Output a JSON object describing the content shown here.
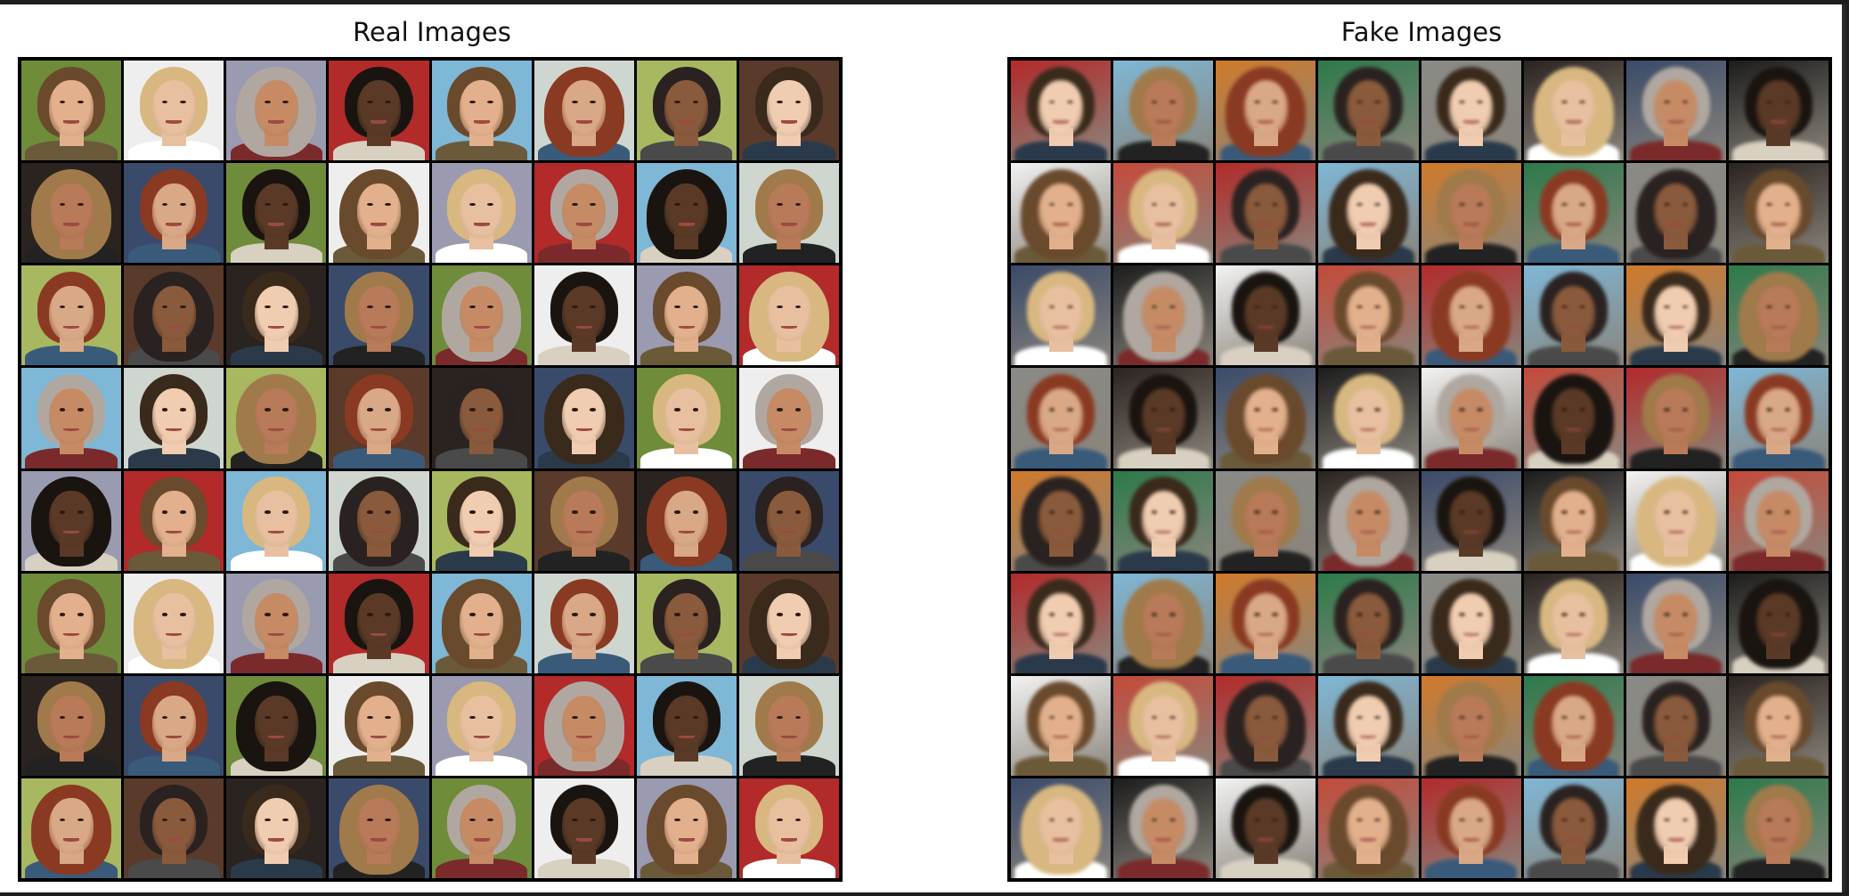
{
  "panels": [
    {
      "title": "Real Images",
      "grid_rows": 8,
      "grid_cols": 8
    },
    {
      "title": "Fake Images",
      "grid_rows": 8,
      "grid_cols": 8
    }
  ],
  "palettes": {
    "backgrounds": [
      "#d8d8d8",
      "#f2f2f2",
      "#2b2320",
      "#cfd6d0",
      "#8a8a86",
      "#7fb7d6",
      "#eeeeee",
      "#6f6a62",
      "#1c1c1c",
      "#5a3a2a",
      "#e9e2da",
      "#2c7a4a",
      "#b22a2a",
      "#6e8c3a",
      "#c44a3a",
      "#3a4a6a",
      "#a8b860",
      "#4a6a8a",
      "#d07a2a",
      "#9a9ab0"
    ],
    "skins": [
      "#e8c0a0",
      "#d9a886",
      "#c68b65",
      "#8a5a3c",
      "#5a3a26",
      "#f0ccb0",
      "#e2b08c",
      "#b87a58"
    ],
    "hairs": [
      "#1a1410",
      "#3a2a1c",
      "#6a4a2c",
      "#a07a4a",
      "#d8b880",
      "#8a3a22",
      "#b0a8a0",
      "#2a2220"
    ],
    "clothes": [
      "#222222",
      "#ffffff",
      "#3a5a7a",
      "#7a2a2a",
      "#4a4a4a",
      "#d8d0c0",
      "#2a3a4a",
      "#6a5a3a"
    ]
  }
}
